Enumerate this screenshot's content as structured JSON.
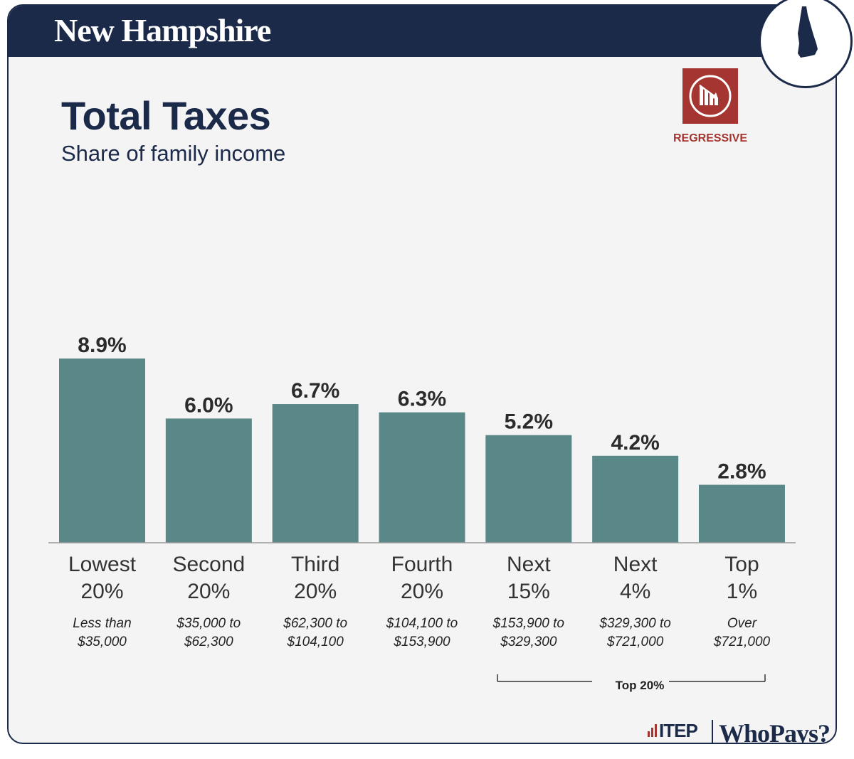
{
  "header": {
    "state": "New Hampshire"
  },
  "title": "Total Taxes",
  "subtitle": "Share of family income",
  "badge": {
    "label": "REGRESSIVE",
    "color": "#a53530",
    "icon": "declining-bar-chart-icon"
  },
  "colors": {
    "navy": "#1c2a4a",
    "bar": "#5a8788",
    "background": "#f4f4f5"
  },
  "chart_data": {
    "type": "bar",
    "categories": [
      "Lowest 20%",
      "Second 20%",
      "Third 20%",
      "Fourth 20%",
      "Next 15%",
      "Next 4%",
      "Top 1%"
    ],
    "category_lines": [
      [
        "Lowest",
        "20%"
      ],
      [
        "Second",
        "20%"
      ],
      [
        "Third",
        "20%"
      ],
      [
        "Fourth",
        "20%"
      ],
      [
        "Next",
        "15%"
      ],
      [
        "Next",
        "4%"
      ],
      [
        "Top",
        "1%"
      ]
    ],
    "income_ranges": [
      [
        "Less than",
        "$35,000"
      ],
      [
        "$35,000 to",
        "$62,300"
      ],
      [
        "$62,300 to",
        "$104,100"
      ],
      [
        "$104,100 to",
        "$153,900"
      ],
      [
        "$153,900 to",
        "$329,300"
      ],
      [
        "$329,300 to",
        "$721,000"
      ],
      [
        "Over",
        "$721,000"
      ]
    ],
    "values": [
      8.9,
      6.0,
      6.7,
      6.3,
      5.2,
      4.2,
      2.8
    ],
    "value_labels": [
      "8.9%",
      "6.0%",
      "6.7%",
      "6.3%",
      "5.2%",
      "4.2%",
      "2.8%"
    ],
    "ylim": [
      0,
      8.9
    ],
    "grid": false,
    "group_bracket": {
      "label": "Top 20%",
      "categories": [
        "Next 15%",
        "Next 4%",
        "Top 1%"
      ]
    }
  },
  "footer": {
    "org": "ITEP",
    "report": "WhoPays?"
  }
}
